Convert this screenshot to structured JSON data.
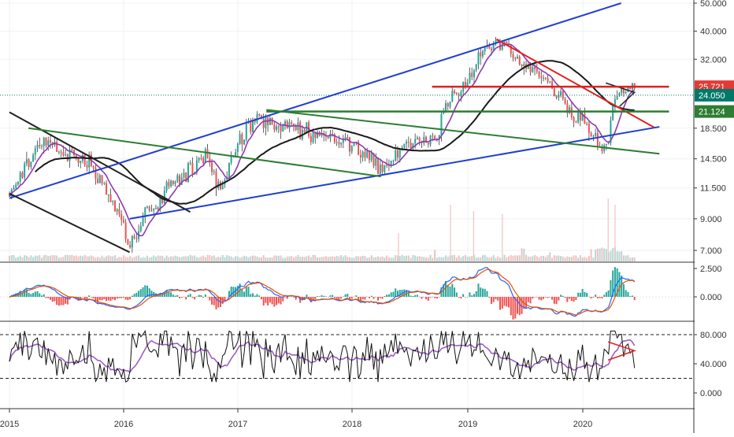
{
  "colors": {
    "background": "#ffffff",
    "grid": "#eef1f5",
    "candle_up": "#26a69a",
    "candle_down": "#ef5350",
    "candle_wick": "#3c3c3c",
    "channel_blue": "#1f3fcf",
    "trend_green": "#2e7d32",
    "trend_black": "#222222",
    "resistance_red": "#e02020",
    "ma_purple": "#8e3ab0",
    "ma_black": "#1a1a1a",
    "macd_line": "#2962ff",
    "signal_line": "#e65100",
    "rsi_line": "#111111",
    "rsi_ma": "#9c5fc4",
    "badge_red": "#e53935",
    "badge_teal": "#00796b",
    "badge_green": "#2e7d32"
  },
  "chart_data": [
    {
      "type": "candlestick",
      "panel": "price",
      "scale": "log",
      "x_range": [
        "2015-01-01",
        "2020-09-30"
      ],
      "x_ticks": [
        "2015",
        "2016",
        "2017",
        "2018",
        "2019",
        "2020"
      ],
      "y_ticks": [
        "50.000",
        "40.000",
        "32.000",
        "25.721",
        "24.050",
        "21.124",
        "18.500",
        "14.500",
        "11.500",
        "9.000",
        "7.000"
      ],
      "y_range": [
        6.5,
        51
      ],
      "price_anchors": {
        "t": [
          2015.0,
          2015.12,
          2015.3,
          2015.5,
          2015.7,
          2015.85,
          2015.98,
          2016.05,
          2016.2,
          2016.35,
          2016.55,
          2016.72,
          2016.85,
          2017.02,
          2017.1,
          2017.35,
          2017.6,
          2017.8,
          2018.0,
          2018.15,
          2018.25,
          2018.45,
          2018.6,
          2018.75,
          2018.8,
          2018.95,
          2019.1,
          2019.28,
          2019.5,
          2019.68,
          2019.82,
          2019.87,
          2020.0,
          2020.1,
          2020.2,
          2020.26,
          2020.3,
          2020.45
        ],
        "price": [
          11.0,
          13.5,
          17.0,
          15.0,
          14.0,
          11.5,
          9.0,
          7.2,
          9.5,
          11.0,
          13.0,
          14.5,
          11.0,
          17.0,
          19.5,
          19.5,
          18.0,
          17.5,
          16.5,
          14.5,
          13.0,
          16.0,
          17.0,
          17.5,
          22.5,
          25.0,
          34.0,
          37.0,
          30.0,
          27.0,
          24.0,
          20.5,
          20.0,
          17.0,
          15.5,
          22.0,
          24.0,
          25.0
        ]
      },
      "volume_range": [
        0.15,
        1.0
      ],
      "trendlines": [
        {
          "color": "channel_blue",
          "from": [
            "2015-01-01",
            10.6
          ],
          "to": [
            "2020-05-01",
            50.0
          ]
        },
        {
          "color": "channel_blue",
          "from": [
            "2016-01-20",
            9.0
          ],
          "to": [
            "2020-09-01",
            18.7
          ]
        },
        {
          "color": "trend_black",
          "from": [
            "2015-01-01",
            21.0
          ],
          "to": [
            "2016-08-01",
            9.5
          ]
        },
        {
          "color": "trend_black",
          "from": [
            "2015-01-01",
            11.0
          ],
          "to": [
            "2016-01-20",
            6.9
          ]
        },
        {
          "color": "trend_green",
          "from": [
            "2015-03-01",
            18.5
          ],
          "to": [
            "2018-04-01",
            12.6
          ]
        },
        {
          "color": "trend_green",
          "from": [
            "2017-04-01",
            21.4
          ],
          "to": [
            "2020-09-01",
            15.1
          ]
        },
        {
          "color": "resistance_red",
          "from": [
            "2019-04-01",
            37.5
          ],
          "to": [
            "2020-08-15",
            18.6
          ]
        }
      ],
      "horizontal_levels": [
        {
          "value": 25.721,
          "color": "resistance_red",
          "from": "2018-09-10",
          "to": "2020-10-01"
        },
        {
          "value": 21.124,
          "color": "trend_green",
          "from": "2017-04-01",
          "to": "2020-10-01"
        },
        {
          "value": 24.05,
          "color": "badge_teal",
          "dotted": true
        }
      ],
      "price_badges": [
        {
          "label": "25.721",
          "value": 25.721,
          "color": "badge_red"
        },
        {
          "label": "24.050",
          "value": 24.05,
          "color": "badge_teal"
        },
        {
          "label": "21.124",
          "value": 21.124,
          "color": "badge_green"
        }
      ]
    },
    {
      "type": "histogram_lines",
      "panel": "macd",
      "y_ticks": [
        "2.500",
        "0.000"
      ],
      "y_range": [
        -1.4,
        2.6
      ]
    },
    {
      "type": "line",
      "panel": "rsi",
      "y_ticks": [
        "80.000",
        "40.000",
        "0.000"
      ],
      "y_range": [
        -5,
        95
      ],
      "upper_band": 80,
      "lower_band": 20
    }
  ]
}
